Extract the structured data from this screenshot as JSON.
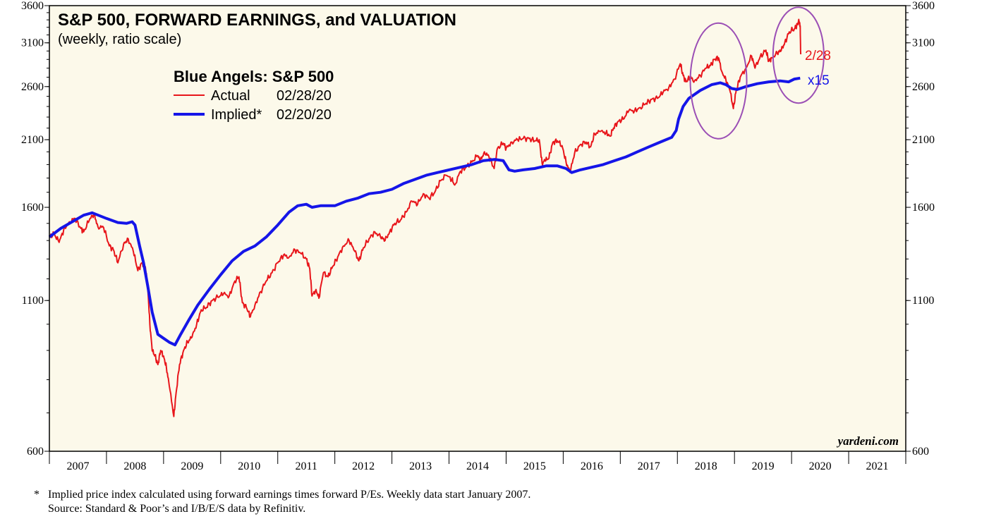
{
  "chart_data": {
    "type": "line",
    "title": "S&P 500, FORWARD EARNINGS, and VALUATION",
    "subtitle": "(weekly, ratio scale)",
    "legend_title": "Blue Angels: S&P 500",
    "y_scale": "log",
    "ylim": [
      600,
      3600
    ],
    "y_ticks": [
      600,
      1100,
      1600,
      2100,
      2600,
      3100,
      3600
    ],
    "x_range": [
      2007.0,
      2022.0
    ],
    "x_categories": [
      "2007",
      "2008",
      "2009",
      "2010",
      "2011",
      "2012",
      "2013",
      "2014",
      "2015",
      "2016",
      "2017",
      "2018",
      "2019",
      "2020",
      "2021"
    ],
    "series": [
      {
        "name": "Actual",
        "date_label": "02/28/20",
        "color": "#e8161b",
        "points": [
          [
            2007.0,
            1418
          ],
          [
            2007.08,
            1440
          ],
          [
            2007.17,
            1390
          ],
          [
            2007.25,
            1460
          ],
          [
            2007.35,
            1510
          ],
          [
            2007.45,
            1530
          ],
          [
            2007.55,
            1470
          ],
          [
            2007.6,
            1450
          ],
          [
            2007.7,
            1520
          ],
          [
            2007.78,
            1560
          ],
          [
            2007.85,
            1480
          ],
          [
            2007.95,
            1475
          ],
          [
            2008.05,
            1370
          ],
          [
            2008.12,
            1350
          ],
          [
            2008.2,
            1280
          ],
          [
            2008.3,
            1380
          ],
          [
            2008.38,
            1410
          ],
          [
            2008.47,
            1340
          ],
          [
            2008.55,
            1240
          ],
          [
            2008.62,
            1280
          ],
          [
            2008.68,
            1260
          ],
          [
            2008.72,
            1170
          ],
          [
            2008.76,
            1000
          ],
          [
            2008.8,
            900
          ],
          [
            2008.85,
            880
          ],
          [
            2008.9,
            850
          ],
          [
            2008.95,
            900
          ],
          [
            2009.0,
            880
          ],
          [
            2009.05,
            840
          ],
          [
            2009.1,
            780
          ],
          [
            2009.18,
            690
          ],
          [
            2009.22,
            760
          ],
          [
            2009.28,
            850
          ],
          [
            2009.35,
            900
          ],
          [
            2009.42,
            930
          ],
          [
            2009.5,
            950
          ],
          [
            2009.58,
            1000
          ],
          [
            2009.66,
            1060
          ],
          [
            2009.75,
            1070
          ],
          [
            2009.85,
            1100
          ],
          [
            2009.95,
            1115
          ],
          [
            2010.05,
            1130
          ],
          [
            2010.15,
            1120
          ],
          [
            2010.25,
            1190
          ],
          [
            2010.32,
            1210
          ],
          [
            2010.38,
            1090
          ],
          [
            2010.45,
            1070
          ],
          [
            2010.52,
            1030
          ],
          [
            2010.6,
            1080
          ],
          [
            2010.7,
            1140
          ],
          [
            2010.8,
            1190
          ],
          [
            2010.9,
            1230
          ],
          [
            2011.0,
            1280
          ],
          [
            2011.1,
            1320
          ],
          [
            2011.2,
            1310
          ],
          [
            2011.3,
            1350
          ],
          [
            2011.4,
            1330
          ],
          [
            2011.5,
            1300
          ],
          [
            2011.56,
            1250
          ],
          [
            2011.6,
            1120
          ],
          [
            2011.67,
            1150
          ],
          [
            2011.72,
            1110
          ],
          [
            2011.8,
            1230
          ],
          [
            2011.88,
            1210
          ],
          [
            2011.96,
            1260
          ],
          [
            2012.05,
            1310
          ],
          [
            2012.15,
            1370
          ],
          [
            2012.25,
            1400
          ],
          [
            2012.35,
            1340
          ],
          [
            2012.42,
            1290
          ],
          [
            2012.5,
            1360
          ],
          [
            2012.6,
            1410
          ],
          [
            2012.7,
            1450
          ],
          [
            2012.8,
            1420
          ],
          [
            2012.88,
            1400
          ],
          [
            2012.96,
            1450
          ],
          [
            2013.05,
            1500
          ],
          [
            2013.15,
            1520
          ],
          [
            2013.25,
            1570
          ],
          [
            2013.35,
            1640
          ],
          [
            2013.45,
            1620
          ],
          [
            2013.55,
            1690
          ],
          [
            2013.65,
            1660
          ],
          [
            2013.75,
            1700
          ],
          [
            2013.85,
            1780
          ],
          [
            2013.95,
            1820
          ],
          [
            2014.05,
            1790
          ],
          [
            2014.1,
            1750
          ],
          [
            2014.2,
            1850
          ],
          [
            2014.3,
            1880
          ],
          [
            2014.4,
            1920
          ],
          [
            2014.5,
            1970
          ],
          [
            2014.55,
            1930
          ],
          [
            2014.62,
            2000
          ],
          [
            2014.7,
            1960
          ],
          [
            2014.79,
            1870
          ],
          [
            2014.85,
            2030
          ],
          [
            2014.95,
            2070
          ],
          [
            2015.0,
            2030
          ],
          [
            2015.1,
            2080
          ],
          [
            2015.2,
            2100
          ],
          [
            2015.3,
            2110
          ],
          [
            2015.4,
            2110
          ],
          [
            2015.5,
            2090
          ],
          [
            2015.58,
            2100
          ],
          [
            2015.63,
            1910
          ],
          [
            2015.68,
            1930
          ],
          [
            2015.75,
            1950
          ],
          [
            2015.82,
            2080
          ],
          [
            2015.9,
            2090
          ],
          [
            2015.98,
            2050
          ],
          [
            2016.05,
            1920
          ],
          [
            2016.12,
            1840
          ],
          [
            2016.2,
            1990
          ],
          [
            2016.3,
            2060
          ],
          [
            2016.4,
            2080
          ],
          [
            2016.48,
            2040
          ],
          [
            2016.55,
            2150
          ],
          [
            2016.65,
            2170
          ],
          [
            2016.75,
            2160
          ],
          [
            2016.82,
            2130
          ],
          [
            2016.88,
            2200
          ],
          [
            2016.96,
            2260
          ],
          [
            2017.05,
            2280
          ],
          [
            2017.15,
            2360
          ],
          [
            2017.25,
            2360
          ],
          [
            2017.35,
            2390
          ],
          [
            2017.45,
            2430
          ],
          [
            2017.55,
            2470
          ],
          [
            2017.65,
            2480
          ],
          [
            2017.75,
            2540
          ],
          [
            2017.85,
            2590
          ],
          [
            2017.95,
            2680
          ],
          [
            2018.05,
            2850
          ],
          [
            2018.1,
            2720
          ],
          [
            2018.15,
            2650
          ],
          [
            2018.22,
            2700
          ],
          [
            2018.3,
            2660
          ],
          [
            2018.4,
            2720
          ],
          [
            2018.5,
            2800
          ],
          [
            2018.58,
            2830
          ],
          [
            2018.65,
            2900
          ],
          [
            2018.72,
            2920
          ],
          [
            2018.78,
            2760
          ],
          [
            2018.85,
            2670
          ],
          [
            2018.92,
            2560
          ],
          [
            2018.98,
            2380
          ],
          [
            2019.03,
            2560
          ],
          [
            2019.1,
            2700
          ],
          [
            2019.2,
            2800
          ],
          [
            2019.3,
            2940
          ],
          [
            2019.36,
            2800
          ],
          [
            2019.45,
            2930
          ],
          [
            2019.55,
            3010
          ],
          [
            2019.6,
            2880
          ],
          [
            2019.65,
            2920
          ],
          [
            2019.75,
            2970
          ],
          [
            2019.82,
            3010
          ],
          [
            2019.88,
            3100
          ],
          [
            2019.96,
            3240
          ],
          [
            2020.05,
            3280
          ],
          [
            2020.1,
            3340
          ],
          [
            2020.13,
            3380
          ],
          [
            2020.15,
            3320
          ],
          [
            2020.16,
            2960
          ]
        ]
      },
      {
        "name": "Implied*",
        "date_label": "02/20/20",
        "color": "#1515e8",
        "points": [
          [
            2007.0,
            1420
          ],
          [
            2007.2,
            1470
          ],
          [
            2007.4,
            1510
          ],
          [
            2007.6,
            1550
          ],
          [
            2007.75,
            1565
          ],
          [
            2008.0,
            1530
          ],
          [
            2008.2,
            1505
          ],
          [
            2008.35,
            1500
          ],
          [
            2008.45,
            1510
          ],
          [
            2008.5,
            1490
          ],
          [
            2008.58,
            1370
          ],
          [
            2008.65,
            1280
          ],
          [
            2008.72,
            1170
          ],
          [
            2008.8,
            1050
          ],
          [
            2008.9,
            960
          ],
          [
            2009.0,
            945
          ],
          [
            2009.1,
            930
          ],
          [
            2009.2,
            920
          ],
          [
            2009.3,
            960
          ],
          [
            2009.45,
            1020
          ],
          [
            2009.6,
            1080
          ],
          [
            2009.8,
            1150
          ],
          [
            2010.0,
            1220
          ],
          [
            2010.2,
            1290
          ],
          [
            2010.4,
            1340
          ],
          [
            2010.6,
            1370
          ],
          [
            2010.8,
            1420
          ],
          [
            2011.0,
            1490
          ],
          [
            2011.2,
            1570
          ],
          [
            2011.35,
            1610
          ],
          [
            2011.5,
            1620
          ],
          [
            2011.6,
            1600
          ],
          [
            2011.75,
            1610
          ],
          [
            2012.0,
            1610
          ],
          [
            2012.2,
            1640
          ],
          [
            2012.4,
            1660
          ],
          [
            2012.6,
            1690
          ],
          [
            2012.8,
            1700
          ],
          [
            2013.0,
            1720
          ],
          [
            2013.2,
            1760
          ],
          [
            2013.4,
            1790
          ],
          [
            2013.6,
            1820
          ],
          [
            2013.8,
            1840
          ],
          [
            2014.0,
            1860
          ],
          [
            2014.2,
            1880
          ],
          [
            2014.4,
            1900
          ],
          [
            2014.6,
            1930
          ],
          [
            2014.8,
            1940
          ],
          [
            2014.95,
            1930
          ],
          [
            2015.05,
            1860
          ],
          [
            2015.15,
            1850
          ],
          [
            2015.3,
            1860
          ],
          [
            2015.5,
            1870
          ],
          [
            2015.7,
            1890
          ],
          [
            2015.9,
            1890
          ],
          [
            2016.05,
            1870
          ],
          [
            2016.15,
            1840
          ],
          [
            2016.3,
            1860
          ],
          [
            2016.5,
            1880
          ],
          [
            2016.7,
            1900
          ],
          [
            2016.9,
            1930
          ],
          [
            2017.1,
            1960
          ],
          [
            2017.3,
            2000
          ],
          [
            2017.5,
            2040
          ],
          [
            2017.7,
            2080
          ],
          [
            2017.9,
            2120
          ],
          [
            2017.98,
            2180
          ],
          [
            2018.02,
            2280
          ],
          [
            2018.1,
            2400
          ],
          [
            2018.2,
            2480
          ],
          [
            2018.4,
            2560
          ],
          [
            2018.6,
            2620
          ],
          [
            2018.75,
            2640
          ],
          [
            2018.85,
            2620
          ],
          [
            2018.95,
            2580
          ],
          [
            2019.05,
            2570
          ],
          [
            2019.2,
            2600
          ],
          [
            2019.4,
            2630
          ],
          [
            2019.6,
            2650
          ],
          [
            2019.8,
            2660
          ],
          [
            2019.95,
            2650
          ],
          [
            2020.05,
            2680
          ],
          [
            2020.15,
            2690
          ]
        ]
      }
    ],
    "annotations": [
      {
        "text": "2/28",
        "color": "#e8161b"
      },
      {
        "text": "x15",
        "color": "#1515e8"
      }
    ],
    "highlight_circles": [
      {
        "center": [
          2018.72,
          2660
        ],
        "color": "#9b4fb5"
      },
      {
        "center": [
          2020.12,
          2950
        ],
        "color": "#9b4fb5"
      }
    ],
    "source_label": "yardeni.com",
    "background_color": "#fcf9ea"
  },
  "footnotes": {
    "line1": "*   Implied price index calculated using forward earnings times forward P/Es. Weekly data start January 2007.",
    "line2": "     Source: Standard & Poor’s and I/B/E/S data by Refinitiv."
  }
}
